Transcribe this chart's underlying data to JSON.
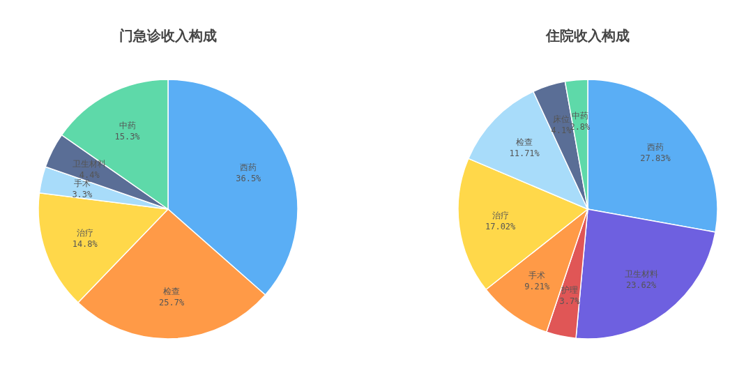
{
  "chart_data": [
    {
      "type": "pie",
      "title": "门急诊收入构成",
      "categories": [
        "西药",
        "检查",
        "治疗",
        "手术",
        "卫生材料",
        "中药"
      ],
      "values": [
        36.5,
        25.7,
        14.8,
        3.3,
        4.4,
        15.3
      ],
      "colors": [
        "#5aaef5",
        "#ff9a47",
        "#ffd84a",
        "#a8dcfa",
        "#5a6e96",
        "#5ed9a9"
      ],
      "value_labels": [
        "36.5%",
        "25.7%",
        "14.8%",
        "3.3%",
        "4.4%",
        "15.3%"
      ]
    },
    {
      "type": "pie",
      "title": "住院收入构成",
      "categories": [
        "西药",
        "卫生材料",
        "护理",
        "手术",
        "治疗",
        "检查",
        "床位",
        "中药"
      ],
      "values": [
        27.83,
        23.62,
        3.7,
        9.21,
        17.02,
        11.71,
        4.1,
        2.8
      ],
      "colors": [
        "#5aaef5",
        "#6e60e0",
        "#e05656",
        "#ff9a47",
        "#ffd84a",
        "#a8dcfa",
        "#5a6e96",
        "#5ed9a9"
      ],
      "value_labels": [
        "27.83%",
        "23.62%",
        "3.7%",
        "9.21%",
        "17.02%",
        "11.71%",
        "4.1%",
        "2.8%"
      ]
    }
  ]
}
